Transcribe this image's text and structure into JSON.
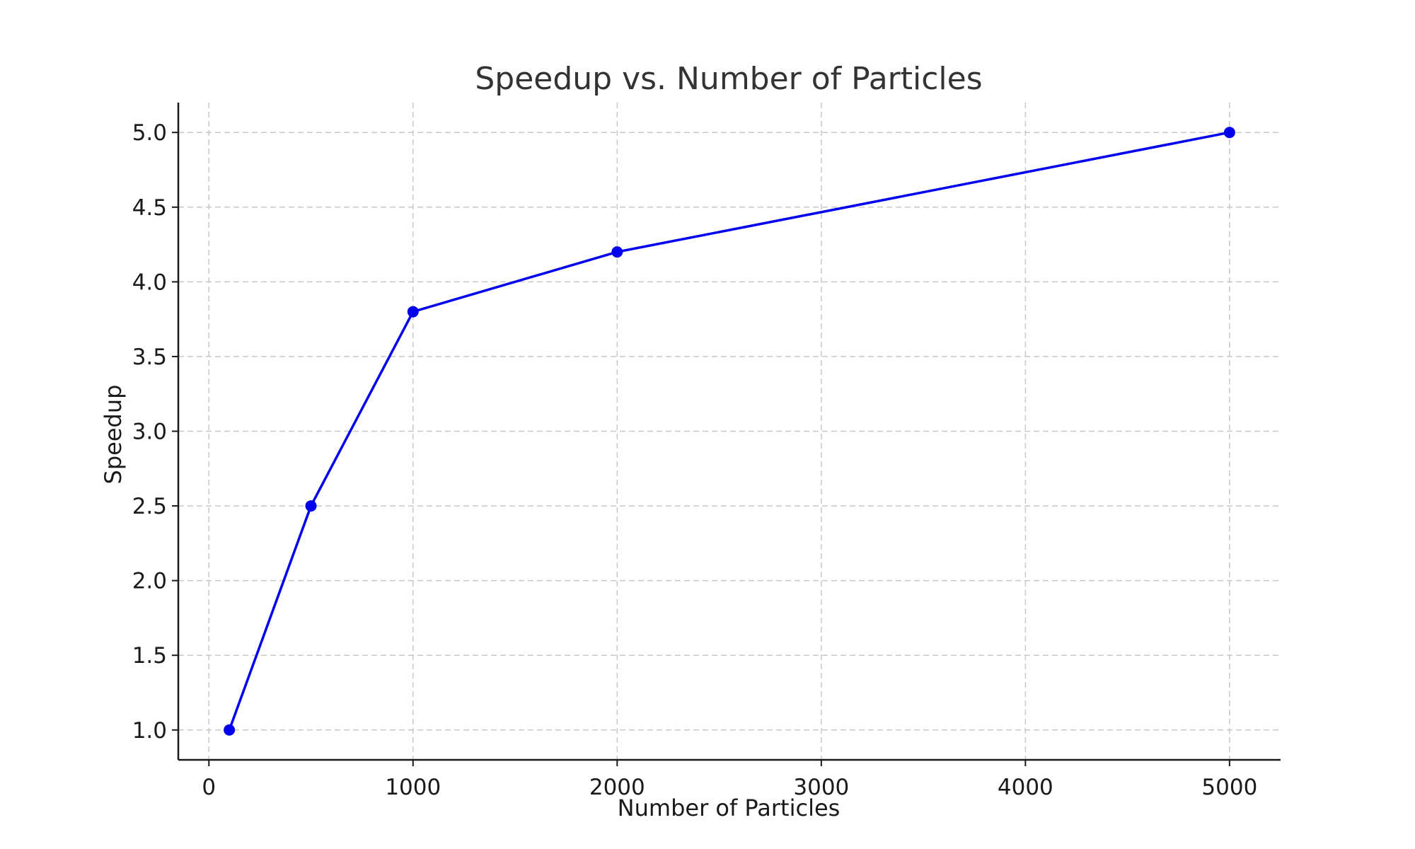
{
  "chart_data": {
    "type": "line",
    "title": "Speedup vs. Number of Particles",
    "xlabel": "Number of Particles",
    "ylabel": "Speedup",
    "xlim": [
      -150,
      5250
    ],
    "ylim": [
      0.8,
      5.2
    ],
    "xticks": [
      0,
      1000,
      2000,
      3000,
      4000,
      5000
    ],
    "xtick_labels": [
      "0",
      "1000",
      "2000",
      "3000",
      "4000",
      "5000"
    ],
    "yticks": [
      1.0,
      1.5,
      2.0,
      2.5,
      3.0,
      3.5,
      4.0,
      4.5,
      5.0
    ],
    "ytick_labels": [
      "1.0",
      "1.5",
      "2.0",
      "2.5",
      "3.0",
      "3.5",
      "4.0",
      "4.5",
      "5.0"
    ],
    "grid": true,
    "series": [
      {
        "color": "#0000ee",
        "marker": "circle",
        "x": [
          100,
          500,
          1000,
          2000,
          5000
        ],
        "y": [
          1.0,
          2.5,
          3.8,
          4.2,
          5.0
        ]
      }
    ]
  }
}
